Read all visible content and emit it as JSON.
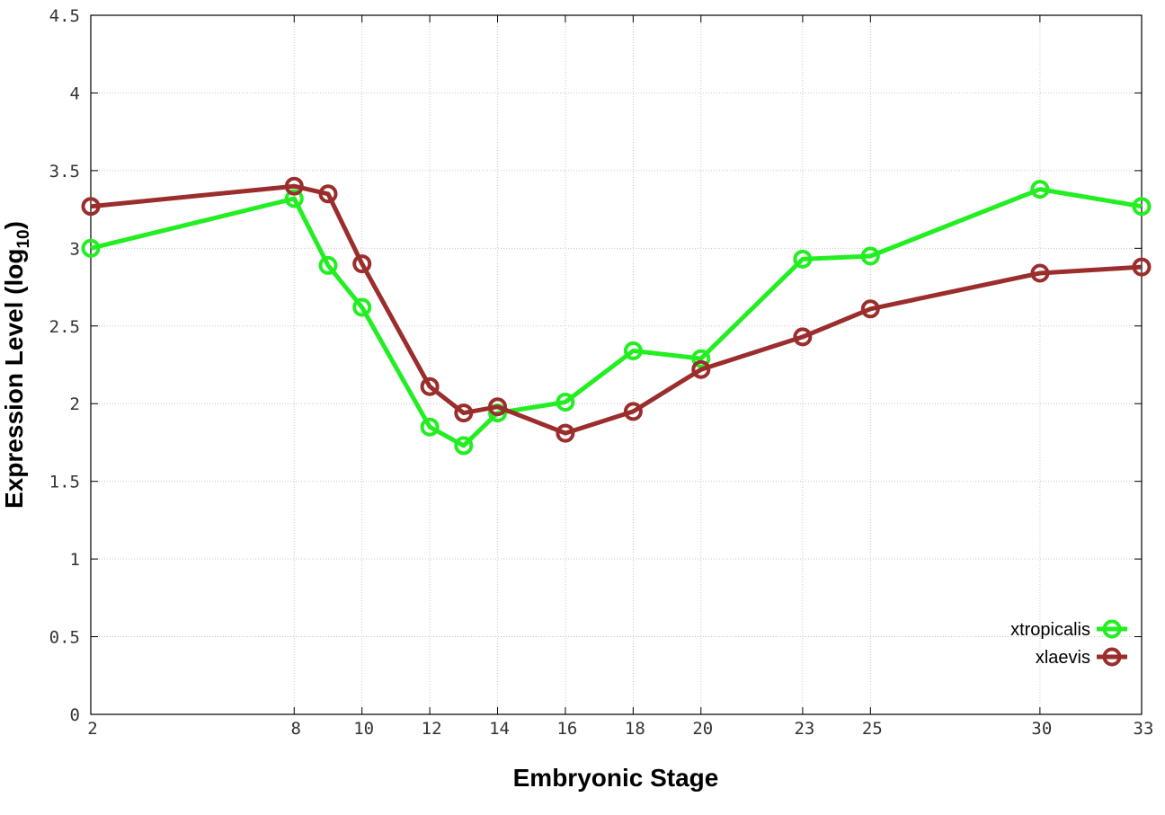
{
  "chart_data": {
    "type": "line",
    "xlabel": "Embryonic Stage",
    "ylabel_main": "Expression Level (log",
    "ylabel_sub": "10",
    "ylabel_close": ")",
    "xlim": [
      2,
      33
    ],
    "ylim": [
      0,
      4.5
    ],
    "x_ticks": [
      2,
      8,
      10,
      12,
      14,
      16,
      18,
      20,
      23,
      25,
      30,
      33
    ],
    "x_tick_labels": [
      "2",
      "8",
      "10",
      "12",
      "14",
      "16",
      "18",
      "20",
      "23",
      "25",
      "30",
      "33"
    ],
    "y_ticks": [
      0,
      0.5,
      1,
      1.5,
      2,
      2.5,
      3,
      3.5,
      4,
      4.5
    ],
    "y_tick_labels": [
      "0",
      "0.5",
      "1",
      "1.5",
      "2",
      "2.5",
      "3",
      "3.5",
      "4",
      "4.5"
    ],
    "grid": true,
    "legend_position": "bottom-right",
    "series": [
      {
        "name": "xtropicalis",
        "color": "#22ee22",
        "marker": "open-circle",
        "x": [
          2,
          8,
          9,
          10,
          12,
          13,
          14,
          16,
          18,
          20,
          23,
          25,
          30,
          33
        ],
        "y": [
          3.0,
          3.32,
          2.89,
          2.62,
          1.85,
          1.73,
          1.94,
          2.01,
          2.34,
          2.29,
          2.93,
          2.95,
          3.38,
          3.27
        ]
      },
      {
        "name": "xlaevis",
        "color": "#9b2d2d",
        "marker": "open-circle",
        "x": [
          2,
          8,
          9,
          10,
          12,
          13,
          14,
          16,
          18,
          20,
          23,
          25,
          30,
          33
        ],
        "y": [
          3.27,
          3.4,
          3.35,
          2.9,
          2.11,
          1.94,
          1.98,
          1.81,
          1.95,
          2.22,
          2.43,
          2.61,
          2.84,
          2.88
        ]
      }
    ]
  }
}
